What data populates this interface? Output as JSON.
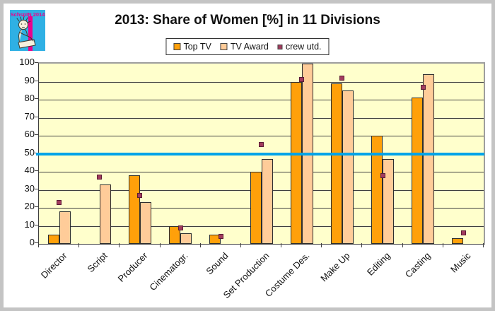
{
  "window": {
    "frame_color": "#c4c4c4",
    "background": "#ffffff"
  },
  "logo": {
    "text": "SchspIN 2014",
    "bg_color": "#2fb0e4",
    "text_color": "#ec008c",
    "stripe_color": "#ec008c"
  },
  "title": "2013: Share of Women [%] in 11 Divisions",
  "legend": {
    "items": [
      {
        "label": "Top TV",
        "color": "#ffa00a",
        "marker": "square"
      },
      {
        "label": "TV Award",
        "color": "#ffcc99",
        "marker": "square"
      },
      {
        "label": "crew utd.",
        "color": "#a23b5e",
        "marker": "small-square"
      }
    ]
  },
  "chart_data": {
    "type": "bar",
    "title": "2013: Share of Women [%] in 11 Divisions",
    "categories": [
      "Director",
      "Script",
      "Producer",
      "Cinematogr.",
      "Sound",
      "Set Production",
      "Costume Des.",
      "Make Up",
      "Editing",
      "Casting",
      "Music"
    ],
    "series": [
      {
        "name": "Top TV",
        "type": "bar",
        "color": "#ffa00a",
        "values": [
          5,
          0,
          38,
          10,
          5,
          40,
          90,
          89,
          60,
          81,
          3
        ]
      },
      {
        "name": "TV Award",
        "type": "bar",
        "color": "#ffcc99",
        "values": [
          18,
          33,
          23,
          6,
          0,
          47,
          100,
          85,
          47,
          94,
          0
        ]
      },
      {
        "name": "crew utd.",
        "type": "scatter",
        "color": "#a23b5e",
        "values": [
          23,
          37,
          27,
          9,
          4,
          55,
          91,
          92,
          38,
          87,
          6
        ]
      }
    ],
    "reference_line": {
      "value": 50,
      "color": "#00a3e8"
    },
    "ylim": [
      0,
      100
    ],
    "yticks": [
      0,
      10,
      20,
      30,
      40,
      50,
      60,
      70,
      80,
      90,
      100
    ],
    "xlabel": "",
    "ylabel": "",
    "grid": true,
    "plot_background": "#ffffcc",
    "legend_position": "top-center"
  }
}
